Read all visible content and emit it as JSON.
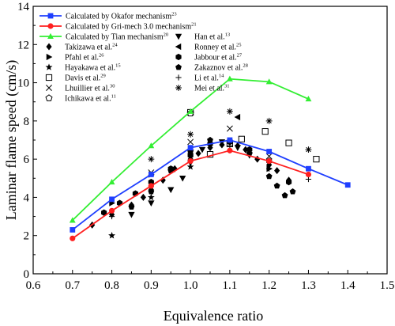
{
  "chart_data": {
    "type": "scatter",
    "title": "",
    "xlabel": "Equivalence ratio",
    "ylabel": "Laminar flame speed (cm/s)",
    "xlim": [
      0.6,
      1.5
    ],
    "ylim": [
      0,
      14
    ],
    "xticks": [
      "0.6",
      "0.7",
      "0.8",
      "0.9",
      "1.0",
      "1.1",
      "1.2",
      "1.3",
      "1.4",
      "1.5"
    ],
    "yticks": [
      "0",
      "2",
      "4",
      "6",
      "8",
      "10",
      "12",
      "14"
    ],
    "grid": false,
    "legend_position": "top-left",
    "series": [
      {
        "name": "Calculated by Okafor mechanism",
        "sup": "23",
        "kind": "line",
        "color": "#1f3fff",
        "marker": "square",
        "x": [
          0.7,
          0.8,
          0.9,
          1.0,
          1.1,
          1.2,
          1.3,
          1.4
        ],
        "y": [
          2.3,
          3.9,
          5.2,
          6.6,
          7.0,
          6.4,
          5.5,
          4.65
        ]
      },
      {
        "name": "Calculated by Gri-mech 3.0 mechanism",
        "sup": "21",
        "kind": "line",
        "color": "#ff2020",
        "marker": "circle",
        "x": [
          0.7,
          0.8,
          0.9,
          1.0,
          1.1,
          1.2,
          1.3
        ],
        "y": [
          1.85,
          3.3,
          4.6,
          5.9,
          6.45,
          5.9,
          5.2
        ]
      },
      {
        "name": "Calculated by Tian mechanism",
        "sup": "20",
        "kind": "line",
        "color": "#33ee33",
        "marker": "triangle-up",
        "x": [
          0.7,
          0.8,
          0.9,
          1.0,
          1.1,
          1.2,
          1.3
        ],
        "y": [
          2.8,
          4.8,
          6.7,
          8.5,
          10.2,
          10.05,
          9.15
        ]
      },
      {
        "name": "Takizawa et al.",
        "sup": "24",
        "kind": "scatter",
        "marker": "diamond",
        "x": [
          0.75,
          0.8,
          0.85,
          0.88,
          0.9,
          0.93,
          0.96,
          1.0,
          1.02,
          1.05,
          1.08,
          1.1,
          1.12,
          1.14,
          1.17,
          1.2,
          1.22,
          1.25
        ],
        "y": [
          2.55,
          3.1,
          3.6,
          4.0,
          4.4,
          4.9,
          5.5,
          6.0,
          6.3,
          6.6,
          6.75,
          6.9,
          6.7,
          6.5,
          6.0,
          5.7,
          5.4,
          4.9
        ]
      },
      {
        "name": "Pfahl et al.",
        "sup": "26",
        "kind": "scatter",
        "marker": "triangle-right",
        "x": [
          0.8,
          0.9,
          1.0,
          1.1,
          1.2
        ],
        "y": [
          3.7,
          5.2,
          6.5,
          6.9,
          5.5
        ]
      },
      {
        "name": "Hayakawa et al.",
        "sup": "15",
        "kind": "scatter",
        "marker": "star",
        "x": [
          0.8,
          0.9,
          1.0,
          1.1
        ],
        "y": [
          2.0,
          4.0,
          5.6,
          6.8
        ]
      },
      {
        "name": "Davis et al.",
        "sup": "29",
        "kind": "scatter",
        "marker": "open-square",
        "x": [
          1.0,
          1.05,
          1.1,
          1.13,
          1.19,
          1.25,
          1.32
        ],
        "y": [
          8.45,
          6.25,
          6.8,
          7.05,
          7.45,
          6.85,
          6.0
        ]
      },
      {
        "name": "Lhuillier et al.",
        "sup": "30",
        "kind": "scatter",
        "marker": "x",
        "x": [
          0.9,
          1.0,
          1.1,
          1.2
        ],
        "y": [
          5.3,
          6.9,
          7.6,
          6.15
        ]
      },
      {
        "name": "Ichikawa et al.",
        "sup": "11",
        "kind": "scatter",
        "marker": "pentagon-open",
        "x": [
          1.0
        ],
        "y": [
          8.4
        ]
      },
      {
        "name": "Han et al.",
        "sup": "13",
        "kind": "scatter",
        "marker": "triangle-down",
        "x": [
          0.85,
          0.9,
          0.95,
          0.98,
          1.0,
          1.03,
          1.08,
          1.12,
          1.15
        ],
        "y": [
          3.1,
          3.7,
          4.4,
          5.0,
          5.8,
          6.5,
          6.9,
          6.6,
          6.2
        ]
      },
      {
        "name": "Ronney et al.",
        "sup": "25",
        "kind": "scatter",
        "marker": "triangle-left",
        "x": [
          1.12
        ],
        "y": [
          8.2
        ]
      },
      {
        "name": "Jabbour et al.",
        "sup": "27",
        "kind": "scatter",
        "marker": "hexagon",
        "x": [
          0.78,
          0.82,
          0.86,
          0.9,
          0.95,
          1.0,
          1.05,
          1.1,
          1.15,
          1.2,
          1.25
        ],
        "y": [
          3.2,
          3.7,
          4.2,
          4.8,
          5.5,
          6.2,
          6.8,
          6.9,
          6.5,
          5.9,
          4.8
        ]
      },
      {
        "name": "Zakaznov et al.",
        "sup": "28",
        "kind": "scatter",
        "marker": "pentagon",
        "x": [
          0.85,
          0.9,
          0.95,
          1.0,
          1.05,
          1.1,
          1.15,
          1.2,
          1.22,
          1.24,
          1.26
        ],
        "y": [
          3.5,
          4.3,
          5.4,
          6.4,
          7.0,
          6.95,
          6.3,
          5.1,
          4.6,
          4.1,
          4.3
        ]
      },
      {
        "name": "Li et al.",
        "sup": "14",
        "kind": "scatter",
        "marker": "plus",
        "x": [
          0.8,
          0.9,
          1.0,
          1.1,
          1.2,
          1.3
        ],
        "y": [
          3.0,
          4.6,
          6.3,
          6.7,
          5.5,
          4.95
        ]
      },
      {
        "name": "Mei et al.",
        "sup": "31",
        "kind": "scatter",
        "marker": "asterisk",
        "x": [
          0.9,
          1.0,
          1.1,
          1.2,
          1.3
        ],
        "y": [
          6.0,
          7.3,
          8.5,
          8.0,
          6.5
        ]
      }
    ]
  }
}
